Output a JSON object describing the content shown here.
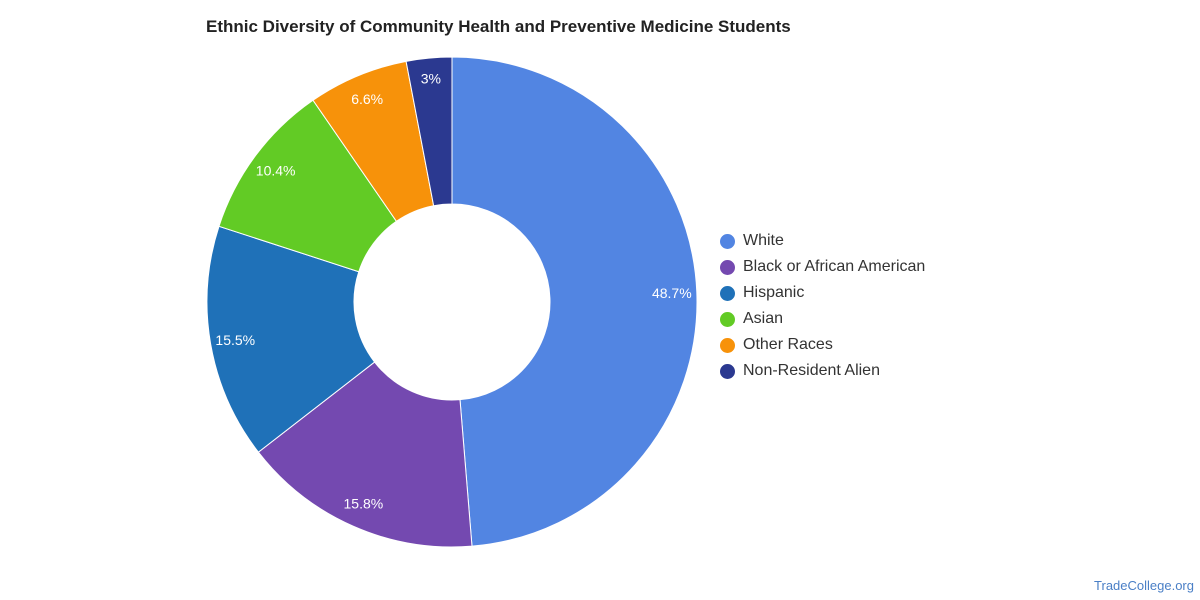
{
  "chart_data": {
    "type": "pie",
    "title": "Ethnic Diversity of Community Health and Preventive Medicine Students",
    "donut": true,
    "categories": [
      "White",
      "Black or African American",
      "Hispanic",
      "Asian",
      "Other Races",
      "Non-Resident Alien"
    ],
    "values": [
      48.7,
      15.8,
      15.5,
      10.4,
      6.6,
      3.0
    ],
    "data_labels": [
      "48.7%",
      "15.8%",
      "15.5%",
      "10.4%",
      "6.6%",
      "3%"
    ],
    "colors": [
      "#5285e2",
      "#7449b0",
      "#1f71b8",
      "#62cb25",
      "#f7920a",
      "#2b3990"
    ],
    "legend_position": "right"
  },
  "watermark": "TradeCollege.org"
}
